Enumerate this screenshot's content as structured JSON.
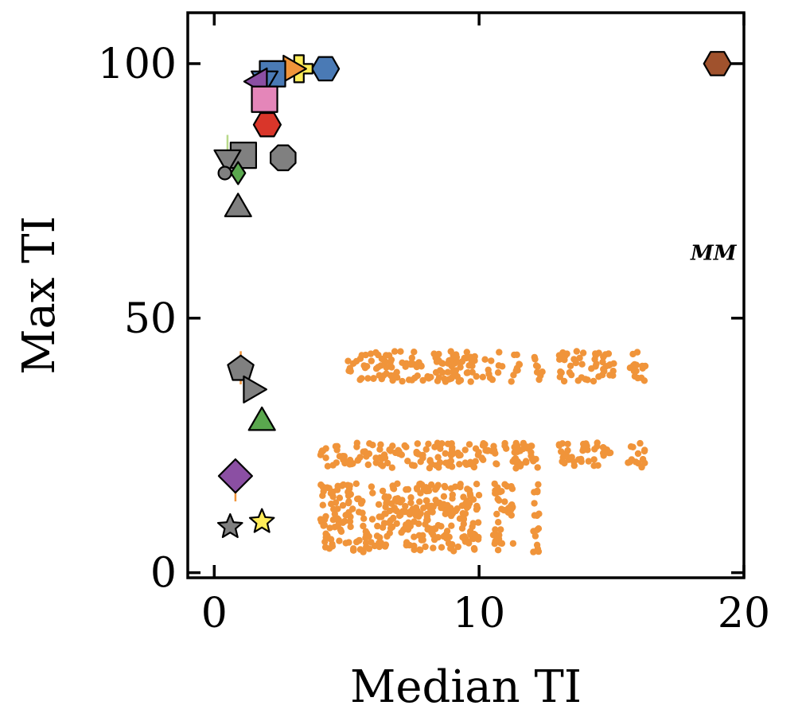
{
  "chart_data": {
    "type": "scatter",
    "xlabel": "Median TI",
    "ylabel": "Max TI",
    "xlim": [
      -1,
      20
    ],
    "ylim": [
      -1,
      110
    ],
    "xticks": [
      0,
      10,
      20
    ],
    "yticks": [
      0,
      50,
      100
    ],
    "grid": false,
    "legend": "none",
    "colors": {
      "orange": "#f0943a",
      "gray": "#808080",
      "purple": "#8b4fa3",
      "blue": "#4a7ab5",
      "pink": "#e486b9",
      "red": "#d9362a",
      "green": "#5aa84e",
      "yellow": "#ffec58",
      "brown": "#a0522d",
      "lightgreen": "#b8d98a",
      "marker_edge": "#000000"
    },
    "points": [
      {
        "x": 19.0,
        "y": 100.0,
        "marker": "hexagon",
        "color": "brown"
      },
      {
        "x": 4.2,
        "y": 99.0,
        "marker": "hexagon",
        "color": "blue"
      },
      {
        "x": 3.2,
        "y": 99.0,
        "marker": "plus",
        "color": "yellow"
      },
      {
        "x": 2.9,
        "y": 99.0,
        "marker": "triangle-right",
        "color": "orange"
      },
      {
        "x": 2.2,
        "y": 98.0,
        "marker": "square",
        "color": "blue"
      },
      {
        "x": 1.9,
        "y": 97.0,
        "marker": "triangle-down",
        "color": "blue"
      },
      {
        "x": 1.7,
        "y": 96.5,
        "marker": "triangle-left",
        "color": "purple"
      },
      {
        "x": 1.9,
        "y": 93.0,
        "marker": "square",
        "color": "pink"
      },
      {
        "x": 2.0,
        "y": 88.0,
        "marker": "hexagon",
        "color": "red"
      },
      {
        "x": 1.1,
        "y": 82.0,
        "marker": "square",
        "color": "gray"
      },
      {
        "x": 0.5,
        "y": 81.5,
        "marker": "triangle-down",
        "color": "gray"
      },
      {
        "x": 2.6,
        "y": 81.5,
        "marker": "octagon",
        "color": "gray"
      },
      {
        "x": 0.9,
        "y": 78.5,
        "marker": "diamond-thin",
        "color": "green"
      },
      {
        "x": 0.4,
        "y": 78.5,
        "marker": "circle-small",
        "color": "gray"
      },
      {
        "x": 0.9,
        "y": 71.5,
        "marker": "triangle-up",
        "color": "gray"
      },
      {
        "x": 1.0,
        "y": 40.0,
        "marker": "pentagon",
        "color": "gray"
      },
      {
        "x": 1.4,
        "y": 36.0,
        "marker": "triangle-right",
        "color": "gray"
      },
      {
        "x": 1.8,
        "y": 29.5,
        "marker": "triangle-up",
        "color": "green"
      },
      {
        "x": 0.8,
        "y": 19.0,
        "marker": "diamond",
        "color": "purple"
      },
      {
        "x": 1.8,
        "y": 10.0,
        "marker": "star",
        "color": "yellow"
      },
      {
        "x": 0.6,
        "y": 9.0,
        "marker": "star",
        "color": "gray"
      }
    ],
    "error_bars": [
      {
        "x": 1.0,
        "y_low": 37.0,
        "y_high": 43.5,
        "color": "orange"
      },
      {
        "x": 0.8,
        "y_low": 14.0,
        "y_high": 19.0,
        "color": "orange"
      },
      {
        "x": 0.5,
        "y_low": 81.5,
        "y_high": 86.0,
        "color": "lightgreen"
      }
    ],
    "orange_cloud": {
      "marker": "dot",
      "color": "orange",
      "bands": [
        {
          "x_segments": [
            [
              5.0,
              10.9
            ],
            [
              11.2,
              11.6
            ],
            [
              12.0,
              12.4
            ],
            [
              13.0,
              15.1
            ],
            [
              15.6,
              16.3
            ]
          ],
          "y_range": [
            37.5,
            43.5
          ]
        },
        {
          "x_segments": [
            [
              4.0,
              12.3
            ],
            [
              13.0,
              15.0
            ],
            [
              15.6,
              16.3
            ]
          ],
          "y_range": [
            20.5,
            25.5
          ]
        },
        {
          "x_segments": [
            [
              4.0,
              10.0
            ],
            [
              10.5,
              11.3
            ],
            [
              12.0,
              12.3
            ]
          ],
          "y_range": [
            4.0,
            17.5
          ]
        }
      ]
    },
    "annotations": [
      {
        "text": "MM",
        "x": 18.85,
        "y": 63.0
      }
    ]
  }
}
